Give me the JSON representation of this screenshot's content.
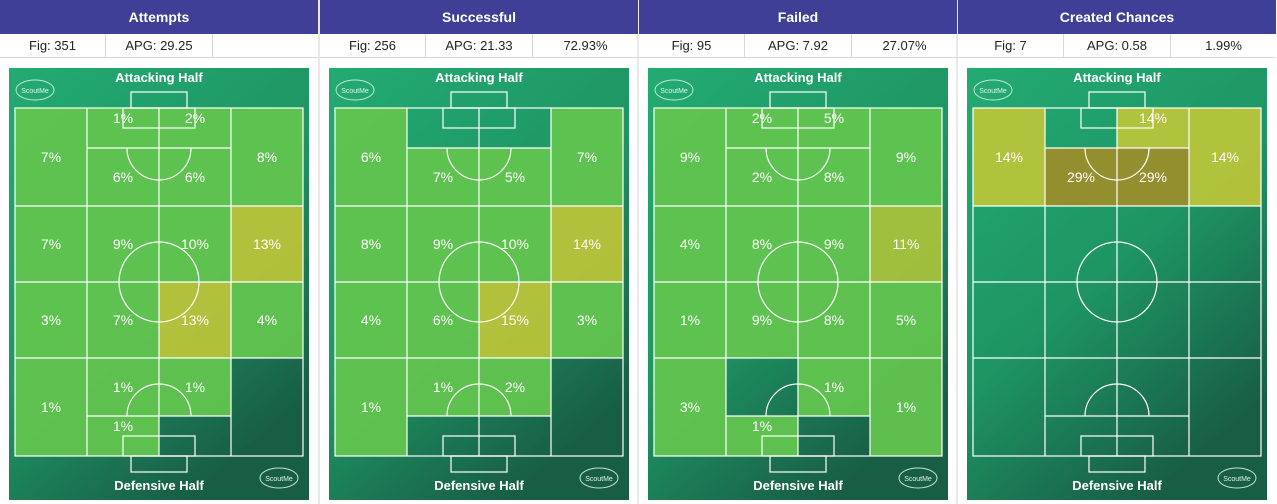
{
  "pitch_labels": {
    "top": "Attacking Half",
    "bottom": "Defensive Half",
    "logo": "ScoutMe"
  },
  "colors": {
    "header": "#3f3f98",
    "pitch_green": "#21a06a",
    "zone_green": "#5cc24f",
    "zone_yellow": "#b9c33a",
    "zone_olive": "#8f8a2a"
  },
  "chart_data": [
    {
      "type": "heatmap",
      "title": "Attempts",
      "stats": [
        "Fig: 351",
        "APG: 29.25",
        ""
      ],
      "zones": [
        {
          "id": "z1",
          "value": 7,
          "label": "7%"
        },
        {
          "id": "z2",
          "value": 1,
          "label": "1%"
        },
        {
          "id": "z3",
          "value": 2,
          "label": "2%"
        },
        {
          "id": "z4",
          "value": 6,
          "label": "6%"
        },
        {
          "id": "z5",
          "value": 6,
          "label": "6%"
        },
        {
          "id": "z6",
          "value": 8,
          "label": "8%"
        },
        {
          "id": "z7",
          "value": 7,
          "label": "7%"
        },
        {
          "id": "z8",
          "value": 9,
          "label": "9%"
        },
        {
          "id": "z9",
          "value": 10,
          "label": "10%"
        },
        {
          "id": "z10",
          "value": 13,
          "label": "13%"
        },
        {
          "id": "z11",
          "value": 3,
          "label": "3%"
        },
        {
          "id": "z12",
          "value": 7,
          "label": "7%"
        },
        {
          "id": "z13",
          "value": 13,
          "label": "13%"
        },
        {
          "id": "z14",
          "value": 4,
          "label": "4%"
        },
        {
          "id": "z15",
          "value": 1,
          "label": "1%"
        },
        {
          "id": "z16",
          "value": 1,
          "label": "1%"
        },
        {
          "id": "z17",
          "value": 1,
          "label": "1%"
        },
        {
          "id": "z18",
          "value": 0,
          "label": ""
        },
        {
          "id": "z19",
          "value": 1,
          "label": "1%"
        },
        {
          "id": "z20",
          "value": 0,
          "label": ""
        }
      ]
    },
    {
      "type": "heatmap",
      "title": "Successful",
      "stats": [
        "Fig: 256",
        "APG: 21.33",
        "72.93%"
      ],
      "zones": [
        {
          "id": "z1",
          "value": 6,
          "label": "6%"
        },
        {
          "id": "z2",
          "value": 0,
          "label": ""
        },
        {
          "id": "z3",
          "value": 0,
          "label": ""
        },
        {
          "id": "z4",
          "value": 7,
          "label": "7%"
        },
        {
          "id": "z5",
          "value": 5,
          "label": "5%"
        },
        {
          "id": "z6",
          "value": 7,
          "label": "7%"
        },
        {
          "id": "z7",
          "value": 8,
          "label": "8%"
        },
        {
          "id": "z8",
          "value": 9,
          "label": "9%"
        },
        {
          "id": "z9",
          "value": 10,
          "label": "10%"
        },
        {
          "id": "z10",
          "value": 14,
          "label": "14%"
        },
        {
          "id": "z11",
          "value": 4,
          "label": "4%"
        },
        {
          "id": "z12",
          "value": 6,
          "label": "6%"
        },
        {
          "id": "z13",
          "value": 15,
          "label": "15%"
        },
        {
          "id": "z14",
          "value": 3,
          "label": "3%"
        },
        {
          "id": "z15",
          "value": 1,
          "label": "1%"
        },
        {
          "id": "z16",
          "value": 1,
          "label": "1%"
        },
        {
          "id": "z17",
          "value": 2,
          "label": "2%"
        },
        {
          "id": "z18",
          "value": 0,
          "label": ""
        },
        {
          "id": "z19",
          "value": 0,
          "label": ""
        },
        {
          "id": "z20",
          "value": 0,
          "label": ""
        }
      ]
    },
    {
      "type": "heatmap",
      "title": "Failed",
      "stats": [
        "Fig: 95",
        "APG: 7.92",
        "27.07%"
      ],
      "zones": [
        {
          "id": "z1",
          "value": 9,
          "label": "9%"
        },
        {
          "id": "z2",
          "value": 2,
          "label": "2%"
        },
        {
          "id": "z3",
          "value": 5,
          "label": "5%"
        },
        {
          "id": "z4",
          "value": 2,
          "label": "2%"
        },
        {
          "id": "z5",
          "value": 8,
          "label": "8%"
        },
        {
          "id": "z6",
          "value": 9,
          "label": "9%"
        },
        {
          "id": "z7",
          "value": 4,
          "label": "4%"
        },
        {
          "id": "z8",
          "value": 8,
          "label": "8%"
        },
        {
          "id": "z9",
          "value": 9,
          "label": "9%"
        },
        {
          "id": "z10",
          "value": 11,
          "label": "11%"
        },
        {
          "id": "z11",
          "value": 1,
          "label": "1%"
        },
        {
          "id": "z12",
          "value": 9,
          "label": "9%"
        },
        {
          "id": "z13",
          "value": 8,
          "label": "8%"
        },
        {
          "id": "z14",
          "value": 5,
          "label": "5%"
        },
        {
          "id": "z15",
          "value": 3,
          "label": "3%"
        },
        {
          "id": "z16",
          "value": 0,
          "label": ""
        },
        {
          "id": "z17",
          "value": 1,
          "label": "1%"
        },
        {
          "id": "z18",
          "value": 1,
          "label": "1%"
        },
        {
          "id": "z19",
          "value": 1,
          "label": "1%"
        },
        {
          "id": "z20",
          "value": 0,
          "label": ""
        }
      ]
    },
    {
      "type": "heatmap",
      "title": "Created Chances",
      "stats": [
        "Fig: 7",
        "APG: 0.58",
        "1.99%"
      ],
      "zones": [
        {
          "id": "z1",
          "value": 14,
          "label": "14%"
        },
        {
          "id": "z2",
          "value": 0,
          "label": ""
        },
        {
          "id": "z3",
          "value": 14,
          "label": "14%"
        },
        {
          "id": "z4",
          "value": 29,
          "label": "29%"
        },
        {
          "id": "z5",
          "value": 29,
          "label": "29%"
        },
        {
          "id": "z6",
          "value": 14,
          "label": "14%"
        },
        {
          "id": "z7",
          "value": 0,
          "label": ""
        },
        {
          "id": "z8",
          "value": 0,
          "label": ""
        },
        {
          "id": "z9",
          "value": 0,
          "label": ""
        },
        {
          "id": "z10",
          "value": 0,
          "label": ""
        },
        {
          "id": "z11",
          "value": 0,
          "label": ""
        },
        {
          "id": "z12",
          "value": 0,
          "label": ""
        },
        {
          "id": "z13",
          "value": 0,
          "label": ""
        },
        {
          "id": "z14",
          "value": 0,
          "label": ""
        },
        {
          "id": "z15",
          "value": 0,
          "label": ""
        },
        {
          "id": "z16",
          "value": 0,
          "label": ""
        },
        {
          "id": "z17",
          "value": 0,
          "label": ""
        },
        {
          "id": "z18",
          "value": 0,
          "label": ""
        },
        {
          "id": "z19",
          "value": 0,
          "label": ""
        },
        {
          "id": "z20",
          "value": 0,
          "label": ""
        }
      ]
    }
  ]
}
